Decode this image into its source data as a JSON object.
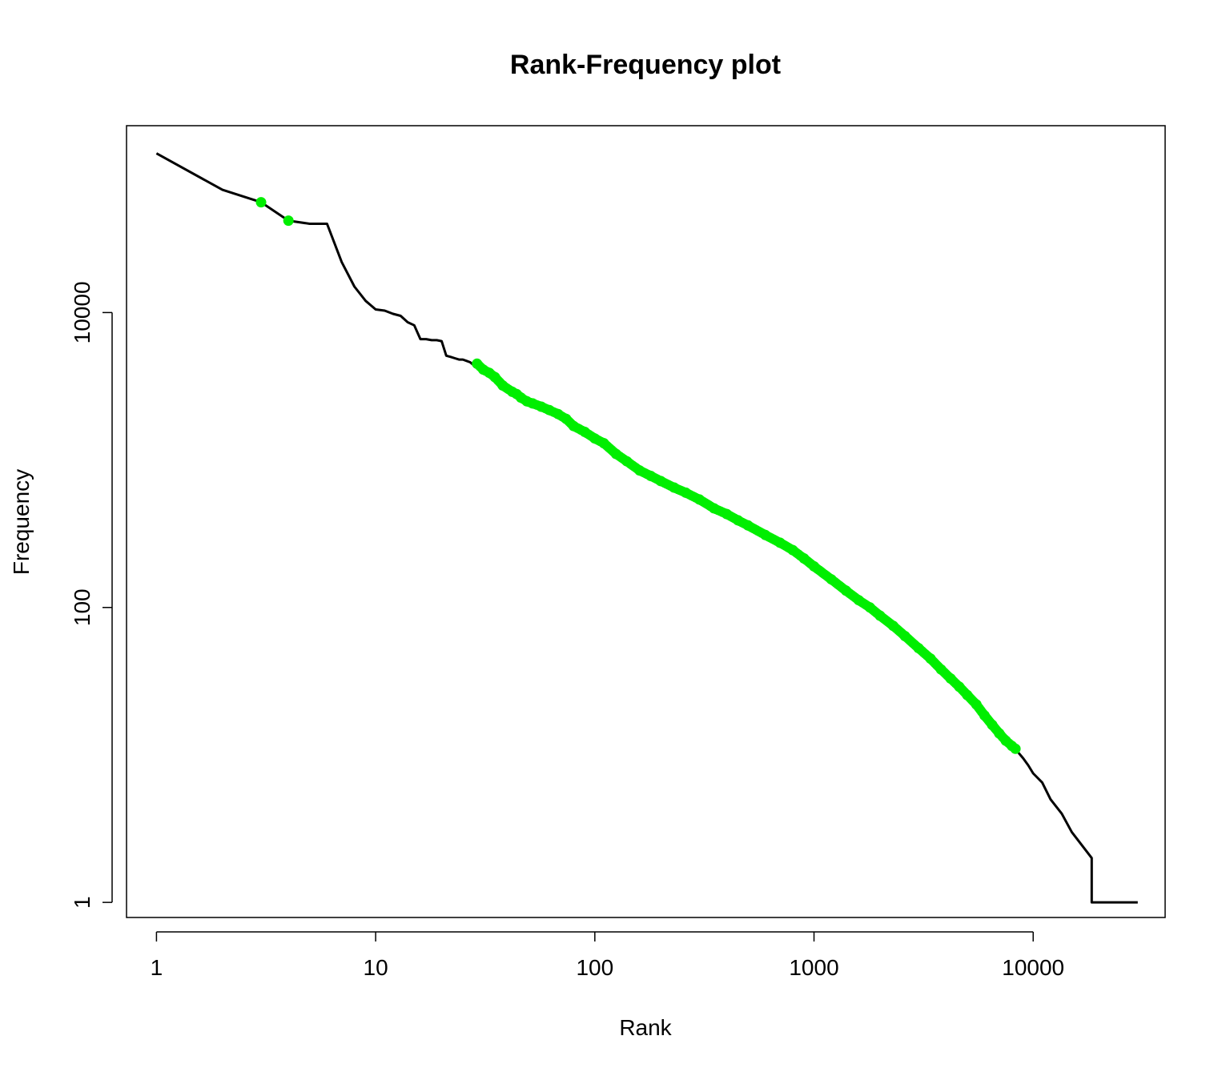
{
  "chart_data": {
    "type": "line",
    "title": "Rank-Frequency plot",
    "xlabel": "Rank",
    "ylabel": "Frequency",
    "x_scale": "log",
    "y_scale": "log",
    "xlim": [
      0.73,
      40000
    ],
    "ylim": [
      0.79,
      185000
    ],
    "x_ticks": [
      1,
      10,
      100,
      1000,
      10000
    ],
    "x_tick_labels": [
      "1",
      "10",
      "100",
      "1000",
      "10000"
    ],
    "y_ticks": [
      1,
      100,
      10000
    ],
    "y_tick_labels": [
      "1",
      "100",
      "10000"
    ],
    "grid": false,
    "colors": {
      "line": "#000000",
      "highlight": "#00ee00"
    },
    "series": [
      {
        "role": "line",
        "color": "#000000",
        "points": [
          [
            1,
            120000
          ],
          [
            2,
            68000
          ],
          [
            3,
            56000
          ],
          [
            4,
            42000
          ],
          [
            5,
            40000
          ],
          [
            6,
            40000
          ],
          [
            7,
            22000
          ],
          [
            8,
            15000
          ],
          [
            9,
            12000
          ],
          [
            10,
            10500
          ],
          [
            11,
            10300
          ],
          [
            12,
            9800
          ],
          [
            13,
            9500
          ],
          [
            14,
            8600
          ],
          [
            15,
            8200
          ],
          [
            16,
            6600
          ],
          [
            17,
            6600
          ],
          [
            18,
            6500
          ],
          [
            19,
            6500
          ],
          [
            20,
            6400
          ],
          [
            21,
            5100
          ],
          [
            22,
            5000
          ],
          [
            23,
            4900
          ],
          [
            24,
            4800
          ],
          [
            25,
            4800
          ],
          [
            26,
            4700
          ],
          [
            27,
            4600
          ],
          [
            28,
            4400
          ],
          [
            30,
            4200
          ],
          [
            32,
            3900
          ],
          [
            34,
            3700
          ],
          [
            36,
            3400
          ],
          [
            40,
            3000
          ],
          [
            45,
            2700
          ],
          [
            55,
            2300
          ],
          [
            70,
            1950
          ],
          [
            90,
            1500
          ],
          [
            110,
            1250
          ],
          [
            150,
            900
          ],
          [
            200,
            720
          ],
          [
            300,
            560
          ],
          [
            400,
            430
          ],
          [
            600,
            310
          ],
          [
            800,
            240
          ],
          [
            1000,
            190
          ],
          [
            1500,
            120
          ],
          [
            2000,
            88
          ],
          [
            3000,
            53
          ],
          [
            4000,
            35
          ],
          [
            5000,
            25
          ],
          [
            6000,
            17.5
          ],
          [
            7000,
            13.5
          ],
          [
            8000,
            11.5
          ],
          [
            8500,
            10.5
          ],
          [
            9000,
            9.5
          ],
          [
            9500,
            8.5
          ],
          [
            10000,
            7.5
          ],
          [
            11000,
            6.5
          ],
          [
            12000,
            5
          ],
          [
            13500,
            4
          ],
          [
            15000,
            3
          ],
          [
            18500,
            2
          ],
          [
            18500,
            1
          ],
          [
            30000,
            1
          ]
        ]
      },
      {
        "role": "points",
        "color": "#00ee00",
        "points": [
          [
            3,
            56000
          ],
          [
            4,
            42000
          ],
          [
            29,
            4500
          ],
          [
            31,
            4100
          ],
          [
            33,
            3900
          ],
          [
            35,
            3650
          ],
          [
            38,
            3200
          ],
          [
            42,
            2900
          ],
          [
            44,
            2800
          ],
          [
            46,
            2650
          ],
          [
            49,
            2500
          ],
          [
            52,
            2420
          ],
          [
            57,
            2300
          ],
          [
            62,
            2180
          ],
          [
            68,
            2050
          ],
          [
            74,
            1900
          ],
          [
            80,
            1700
          ],
          [
            90,
            1550
          ],
          [
            100,
            1400
          ],
          [
            110,
            1300
          ],
          [
            125,
            1100
          ],
          [
            140,
            980
          ],
          [
            160,
            850
          ],
          [
            180,
            780
          ],
          [
            200,
            720
          ],
          [
            230,
            650
          ],
          [
            260,
            600
          ],
          [
            300,
            540
          ],
          [
            350,
            470
          ],
          [
            400,
            430
          ],
          [
            450,
            390
          ],
          [
            500,
            360
          ],
          [
            600,
            310
          ],
          [
            700,
            275
          ],
          [
            800,
            245
          ],
          [
            900,
            215
          ],
          [
            1000,
            190
          ],
          [
            1200,
            155
          ],
          [
            1400,
            130
          ],
          [
            1600,
            112
          ],
          [
            1800,
            100
          ],
          [
            2000,
            88
          ],
          [
            2300,
            75
          ],
          [
            2600,
            64
          ],
          [
            3000,
            53
          ],
          [
            3400,
            45
          ],
          [
            3800,
            38
          ],
          [
            4200,
            33
          ],
          [
            4600,
            29
          ],
          [
            5000,
            25.5
          ],
          [
            5500,
            22
          ],
          [
            6000,
            18.5
          ],
          [
            6500,
            16
          ],
          [
            7000,
            14
          ],
          [
            7500,
            12.5
          ],
          [
            8000,
            11.5
          ],
          [
            8300,
            11
          ]
        ]
      }
    ]
  }
}
